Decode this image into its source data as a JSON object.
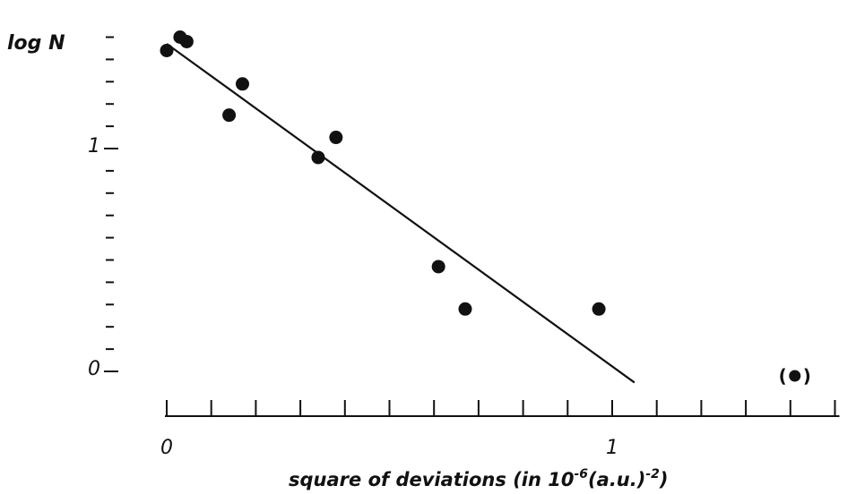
{
  "chart_data": {
    "type": "scatter",
    "title": "",
    "ylabel": "log N",
    "xlabel_main": "square of deviations (in 10",
    "xlabel_exp1": "-6",
    "xlabel_mid": "(a.u.)",
    "xlabel_exp2": "-2",
    "xlabel_end": ")",
    "xlim": [
      0,
      1.5
    ],
    "ylim": [
      0,
      1.5
    ],
    "x_tick_step": 0.1,
    "y_tick_step": 0.1,
    "x_tick_labels": [
      {
        "value": 0,
        "text": "0"
      },
      {
        "value": 1,
        "text": "1"
      }
    ],
    "y_tick_labels": [
      {
        "value": 0,
        "text": "0"
      },
      {
        "value": 1,
        "text": "1"
      }
    ],
    "grid": false,
    "points": [
      {
        "x": 0.0,
        "y": 1.44
      },
      {
        "x": 0.03,
        "y": 1.5
      },
      {
        "x": 0.045,
        "y": 1.48
      },
      {
        "x": 0.14,
        "y": 1.15
      },
      {
        "x": 0.17,
        "y": 1.29
      },
      {
        "x": 0.34,
        "y": 0.96
      },
      {
        "x": 0.38,
        "y": 1.05
      },
      {
        "x": 0.61,
        "y": 0.47
      },
      {
        "x": 0.67,
        "y": 0.28
      },
      {
        "x": 0.97,
        "y": 0.28
      }
    ],
    "outlier": {
      "x": 1.41,
      "y": -0.02,
      "label_open": "(",
      "label_close": ")"
    },
    "fit_line": {
      "x1": 0.0,
      "y1": 1.47,
      "x2": 1.05,
      "y2": -0.05
    }
  }
}
